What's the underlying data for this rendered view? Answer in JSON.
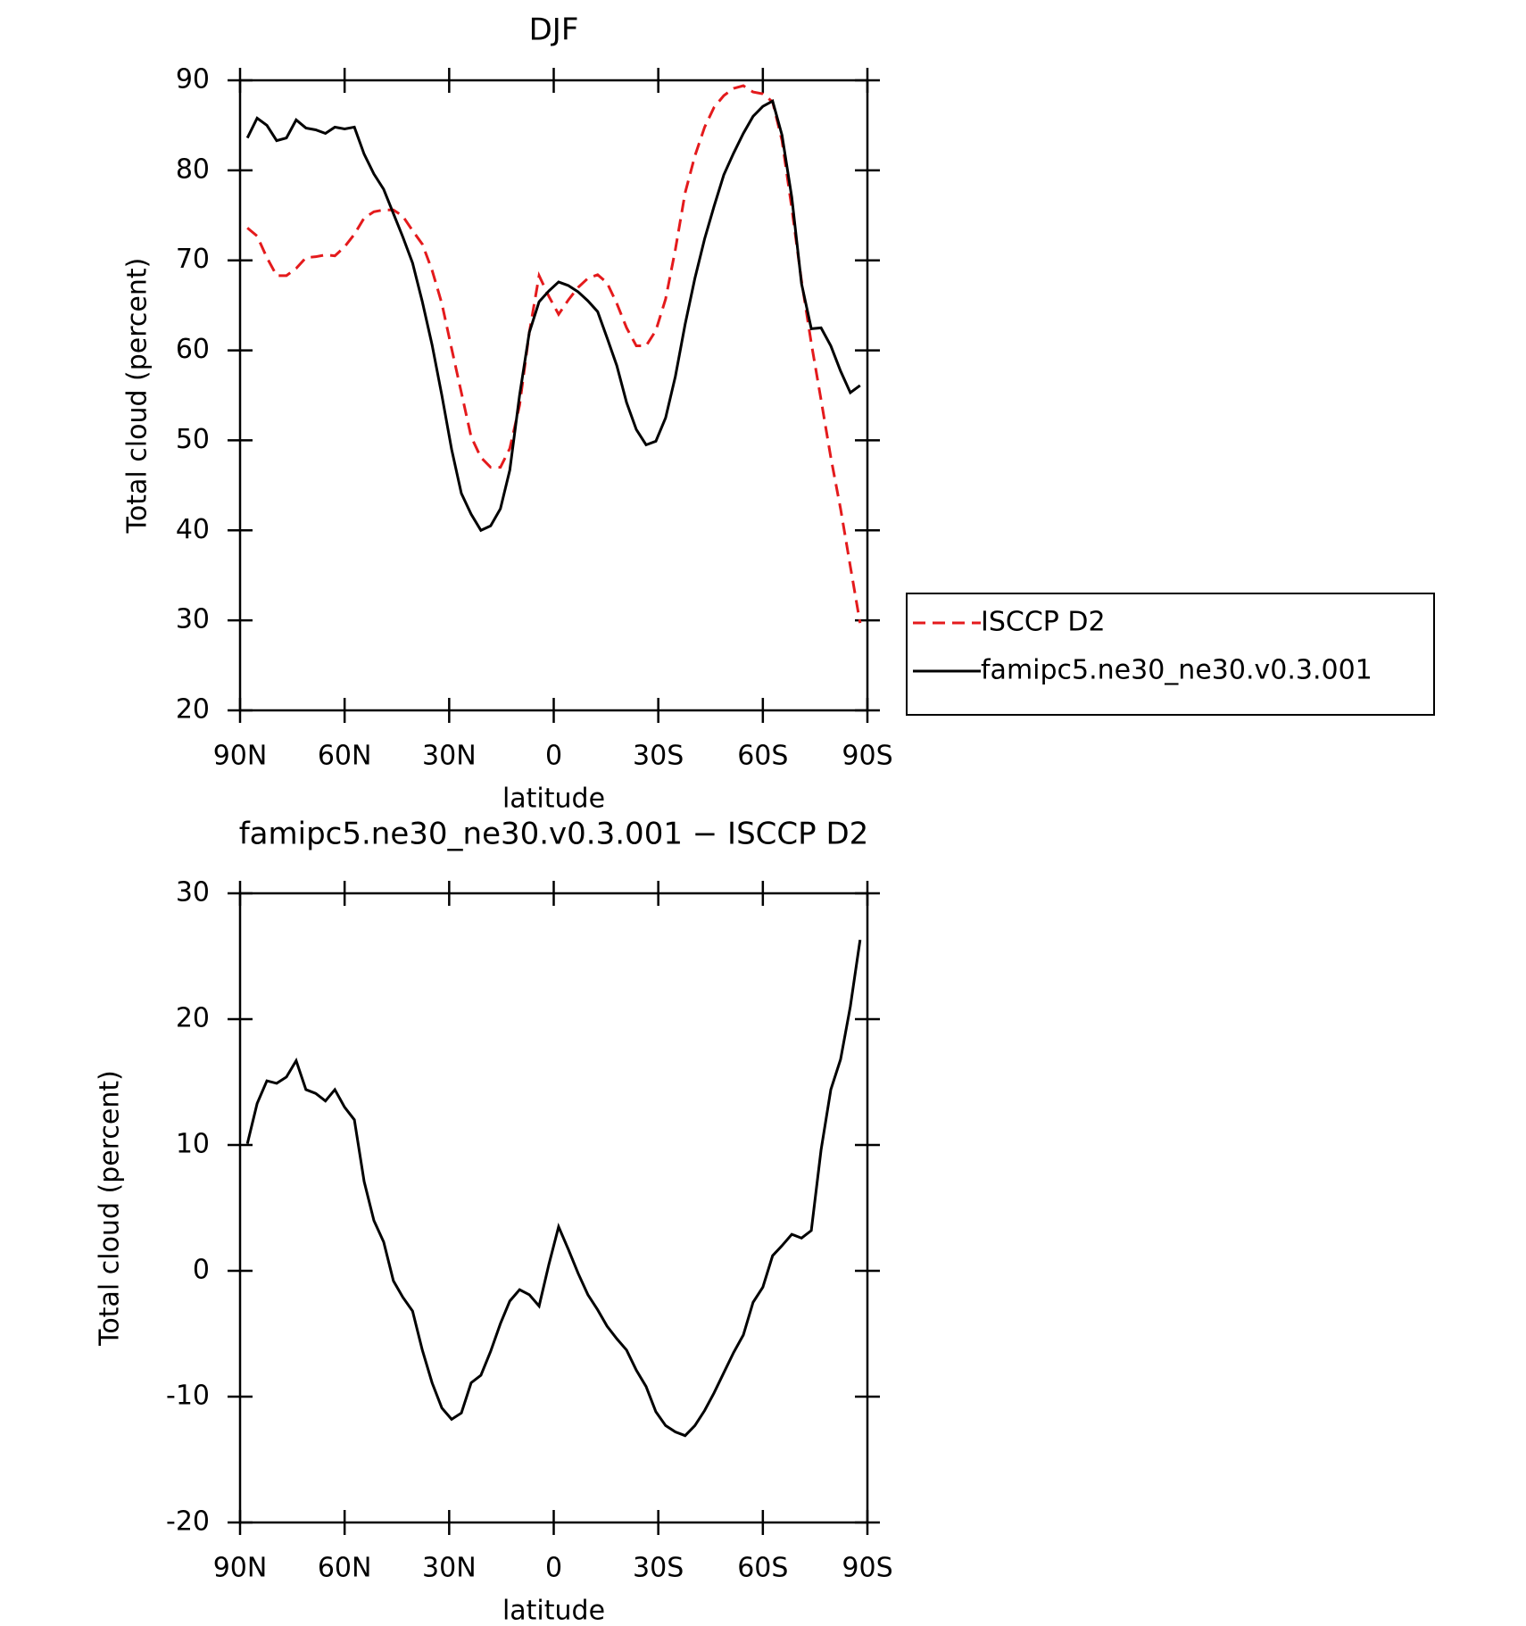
{
  "chart_data": [
    {
      "type": "line",
      "title": "DJF",
      "y_label": "Total cloud (percent)",
      "x_label": "latitude",
      "xlim": [
        90,
        -90
      ],
      "xticks": [
        {
          "value": 90,
          "label": "90N"
        },
        {
          "value": 60,
          "label": "60N"
        },
        {
          "value": 30,
          "label": "30N"
        },
        0,
        {
          "value": -30,
          "label": "30S"
        },
        {
          "value": -60,
          "label": "60S"
        },
        {
          "value": -90,
          "label": "90S"
        }
      ],
      "ylim": [
        20,
        90
      ],
      "yticks": [
        20,
        30,
        40,
        50,
        60,
        70,
        80,
        90
      ],
      "legend": "right",
      "x": [
        87.9,
        85.1,
        82.3,
        79.5,
        76.7,
        73.9,
        71.1,
        68.3,
        65.5,
        62.8,
        60,
        57.2,
        54.4,
        51.6,
        48.8,
        46,
        43.3,
        40.5,
        37.7,
        34.9,
        32.1,
        29.3,
        26.5,
        23.7,
        20.9,
        18.1,
        15.3,
        12.6,
        9.8,
        7,
        4.2,
        1.4,
        -1.4,
        -4.2,
        -7,
        -9.8,
        -12.6,
        -15.3,
        -18.1,
        -20.9,
        -23.7,
        -26.5,
        -29.3,
        -32.1,
        -34.9,
        -37.7,
        -40.5,
        -43.3,
        -46,
        -48.8,
        -51.6,
        -54.4,
        -57.2,
        -60,
        -62.8,
        -65.5,
        -68.3,
        -71.1,
        -73.9,
        -76.7,
        -79.5,
        -82.3,
        -85.1,
        -87.9
      ],
      "series": [
        {
          "name": "ISCCP D2",
          "color": "#e41a1c",
          "linestyle": "dashed",
          "values": [
            73.6,
            72.7,
            70.3,
            68.3,
            68.3,
            69.1,
            70.3,
            70.4,
            70.6,
            70.5,
            71.5,
            72.9,
            74.7,
            75.4,
            75.6,
            75.6,
            74.9,
            73.3,
            71.8,
            68.9,
            65.2,
            60.2,
            55.3,
            50.4,
            48.1,
            47.0,
            47.0,
            49.1,
            53.9,
            62.0,
            68.3,
            66.0,
            64.0,
            65.6,
            67.0,
            68.0,
            68.4,
            67.5,
            65.2,
            62.5,
            60.5,
            60.5,
            62.2,
            65.7,
            71.2,
            77.5,
            81.6,
            84.8,
            87.0,
            88.3,
            89.1,
            89.4,
            88.7,
            88.5,
            87.6,
            83.3,
            75.8,
            67.7,
            60.8,
            54.5,
            48.1,
            42.4,
            36.0,
            29.7
          ]
        },
        {
          "name": "famipc5.ne30_ne30.v0.3.001",
          "color": "#000000",
          "linestyle": "solid",
          "values": [
            83.6,
            85.8,
            85.0,
            83.3,
            83.6,
            85.6,
            84.7,
            84.5,
            84.1,
            84.8,
            84.6,
            84.8,
            81.8,
            79.6,
            77.9,
            75.2,
            72.6,
            69.7,
            65.4,
            60.6,
            55.0,
            49.0,
            44.1,
            41.8,
            40.0,
            40.5,
            42.4,
            46.7,
            55.0,
            62.0,
            65.4,
            66.6,
            67.6,
            67.2,
            66.5,
            65.5,
            64.3,
            61.4,
            58.3,
            54.2,
            51.2,
            49.5,
            49.9,
            52.5,
            57.1,
            62.9,
            68.0,
            72.4,
            76.0,
            79.5,
            81.9,
            84.1,
            86.0,
            87.1,
            87.7,
            83.9,
            77.0,
            67.4,
            62.4,
            62.5,
            60.5,
            57.7,
            55.3,
            56.1
          ]
        }
      ]
    },
    {
      "type": "line",
      "title": "famipc5.ne30_ne30.v0.3.001 − ISCCP D2",
      "y_label": "Total cloud (percent)",
      "x_label": "latitude",
      "xlim": [
        90,
        -90
      ],
      "xticks": [
        {
          "value": 90,
          "label": "90N"
        },
        {
          "value": 60,
          "label": "60N"
        },
        {
          "value": 30,
          "label": "30N"
        },
        0,
        {
          "value": -30,
          "label": "30S"
        },
        {
          "value": -60,
          "label": "60S"
        },
        {
          "value": -90,
          "label": "90S"
        }
      ],
      "ylim": [
        -20,
        30
      ],
      "yticks": [
        -20,
        -10,
        0,
        10,
        20,
        30
      ],
      "x": [
        87.9,
        85.1,
        82.3,
        79.5,
        76.7,
        73.9,
        71.1,
        68.3,
        65.5,
        62.8,
        60,
        57.2,
        54.4,
        51.6,
        48.8,
        46,
        43.3,
        40.5,
        37.7,
        34.9,
        32.1,
        29.3,
        26.5,
        23.7,
        20.9,
        18.1,
        15.3,
        12.6,
        9.8,
        7,
        4.2,
        1.4,
        -1.4,
        -4.2,
        -7,
        -9.8,
        -12.6,
        -15.3,
        -18.1,
        -20.9,
        -23.7,
        -26.5,
        -29.3,
        -32.1,
        -34.9,
        -37.7,
        -40.5,
        -43.3,
        -46,
        -48.8,
        -51.6,
        -54.4,
        -57.2,
        -60,
        -62.8,
        -65.5,
        -68.3,
        -71.1,
        -73.9,
        -76.7,
        -79.5,
        -82.3,
        -85.1,
        -87.9
      ],
      "series": [
        {
          "color": "#000000",
          "linestyle": "solid",
          "values": [
            10.1,
            13.3,
            15.1,
            14.9,
            15.4,
            16.7,
            14.4,
            14.1,
            13.5,
            14.4,
            13.0,
            12.0,
            7.1,
            4.0,
            2.3,
            -0.8,
            -2.1,
            -3.2,
            -6.3,
            -8.9,
            -10.9,
            -11.8,
            -11.3,
            -8.9,
            -8.3,
            -6.4,
            -4.2,
            -2.4,
            -1.5,
            -1.9,
            -2.8,
            0.5,
            3.5,
            1.7,
            -0.2,
            -1.9,
            -3.1,
            -4.4,
            -5.4,
            -6.3,
            -7.9,
            -9.2,
            -11.2,
            -12.3,
            -12.8,
            -13.1,
            -12.3,
            -11.1,
            -9.7,
            -8.1,
            -6.5,
            -5.1,
            -2.5,
            -1.3,
            1.2,
            2.0,
            2.9,
            2.6,
            3.2,
            9.6,
            14.4,
            16.8,
            21.0,
            26.3
          ]
        }
      ]
    }
  ]
}
